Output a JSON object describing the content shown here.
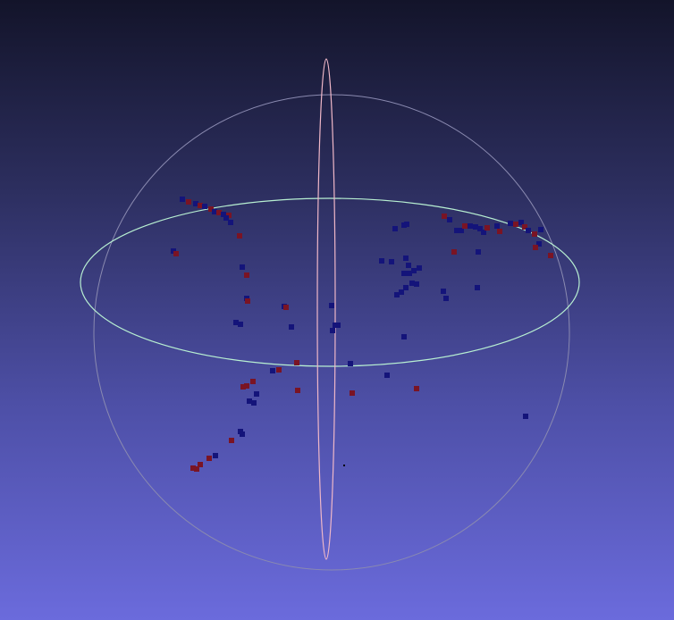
{
  "viewer": {
    "background_top": "#13142a",
    "background_bottom": "#6b6bdc",
    "trackball": {
      "sphere_color": "#8a8ab0",
      "equator_color": "#b8f0d2",
      "meridian_color": "#f0b8c8"
    },
    "point_colors": {
      "blue": "#14147a",
      "red": "#7a1424",
      "pivot": "#000000"
    }
  }
}
